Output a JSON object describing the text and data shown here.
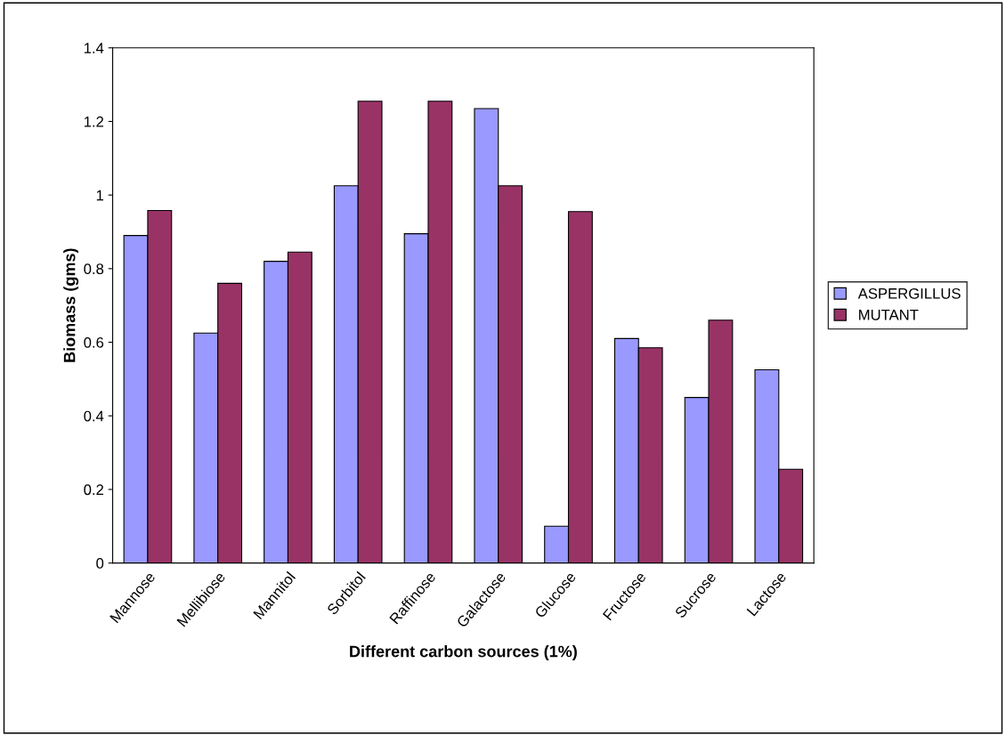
{
  "chart_data": {
    "type": "bar",
    "xlabel": "Different carbon sources (1%)",
    "ylabel": "Biomass (gms)",
    "categories": [
      "Mannose",
      "Mellibiose",
      "Mannitol",
      "Sorbitol",
      "Raffinose",
      "Galactose",
      "Glucose",
      "Fructose",
      "Sucrose",
      "Lactose"
    ],
    "series": [
      {
        "name": "ASPERGILLUS",
        "color": "#9999ff",
        "values": [
          0.89,
          0.625,
          0.82,
          1.025,
          0.895,
          1.235,
          0.1,
          0.61,
          0.45,
          0.525
        ]
      },
      {
        "name": "MUTANT",
        "color": "#993366",
        "values": [
          0.958,
          0.76,
          0.845,
          1.255,
          1.255,
          1.025,
          0.955,
          0.585,
          0.66,
          0.255
        ]
      }
    ],
    "ylim": [
      0,
      1.4
    ],
    "yticks": [
      0,
      {
        "value": 0.2,
        "label": "0.2"
      },
      {
        "value": 0.4,
        "label": "0.4"
      },
      {
        "value": 0.6,
        "label": "0.6"
      },
      {
        "value": 0.8,
        "label": "0.8"
      },
      1,
      {
        "value": 1.2,
        "label": "1.2"
      },
      {
        "value": 1.4,
        "label": "1.4"
      }
    ],
    "grid": false,
    "legend": "right"
  }
}
